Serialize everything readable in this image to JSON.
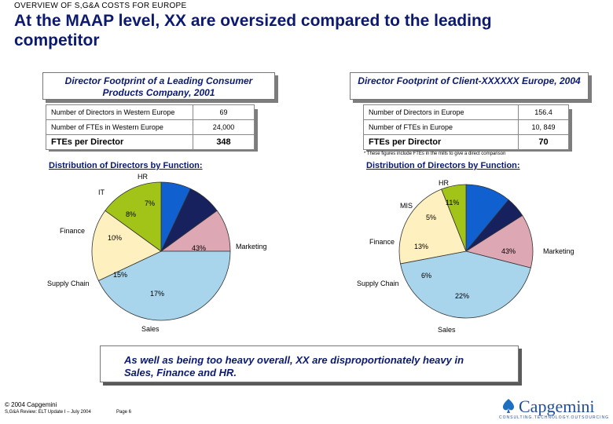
{
  "header": {
    "overline": "OVERVIEW OF S,G&A COSTS FOR EUROPE",
    "title": "At the MAAP level, XX are oversized compared to the leading competitor"
  },
  "left": {
    "heading": "Director Footprint of a Leading Consumer Products Company, 2001",
    "rows": [
      {
        "label": "Number of Directors in Western Europe",
        "value": "69"
      },
      {
        "label": "Number of FTEs in Western Europe",
        "value": "24,000"
      },
      {
        "label": "FTEs per Director",
        "value": "348"
      }
    ],
    "dist_title": "Distribution of Directors by Function:"
  },
  "right": {
    "heading": "Director Footprint of Client-XXXXXX Europe, 2004",
    "rows": [
      {
        "label": "Number of Directors in Europe",
        "value": "156.4"
      },
      {
        "label": "Number of FTEs in Europe",
        "value": "10, 849"
      },
      {
        "label": "FTEs per Director",
        "value": "70"
      }
    ],
    "footnote": "* These figures include FTEs in the mills to give a direct comparison",
    "dist_title": "Distribution of Directors by Function:"
  },
  "chart_data": [
    {
      "type": "pie",
      "slices": [
        {
          "label": "HR",
          "value": 7,
          "pct": "7%",
          "color": "#1060d0"
        },
        {
          "label": "IT",
          "value": 8,
          "pct": "8%",
          "color": "#17215e"
        },
        {
          "label": "Finance",
          "value": 10,
          "pct": "10%",
          "color": "#dea7b4"
        },
        {
          "label": "Marketing",
          "value": 43,
          "pct": "43%",
          "color": "#a8d4ec"
        },
        {
          "label": "Sales",
          "value": 17,
          "pct": "17%",
          "color": "#fff0bf"
        },
        {
          "label": "Supply Chain",
          "value": 15,
          "pct": "15%",
          "color": "#a2c419"
        }
      ]
    },
    {
      "type": "pie",
      "slices": [
        {
          "label": "HR",
          "value": 11,
          "pct": "11%",
          "color": "#1060d0"
        },
        {
          "label": "MIS",
          "value": 5,
          "pct": "5%",
          "color": "#17215e"
        },
        {
          "label": "Finance",
          "value": 13,
          "pct": "13%",
          "color": "#dea7b4"
        },
        {
          "label": "Marketing",
          "value": 43,
          "pct": "43%",
          "color": "#a8d4ec"
        },
        {
          "label": "Sales",
          "value": 22,
          "pct": "22%",
          "color": "#fff0bf"
        },
        {
          "label": "Supply Chain",
          "value": 6,
          "pct": "6%",
          "color": "#a2c419"
        }
      ]
    }
  ],
  "callout": "As well as being too heavy overall, XX are disproportionately heavy in Sales, Finance and HR.",
  "footer": {
    "copyright": "© 2004 Capgemini",
    "doc": "S,G&A Review: ELT Update I – July 2004",
    "page": "Page 6",
    "logo": "Capgemini",
    "tagline": "CONSULTING.TECHNOLOGY.OUTSOURCING"
  }
}
